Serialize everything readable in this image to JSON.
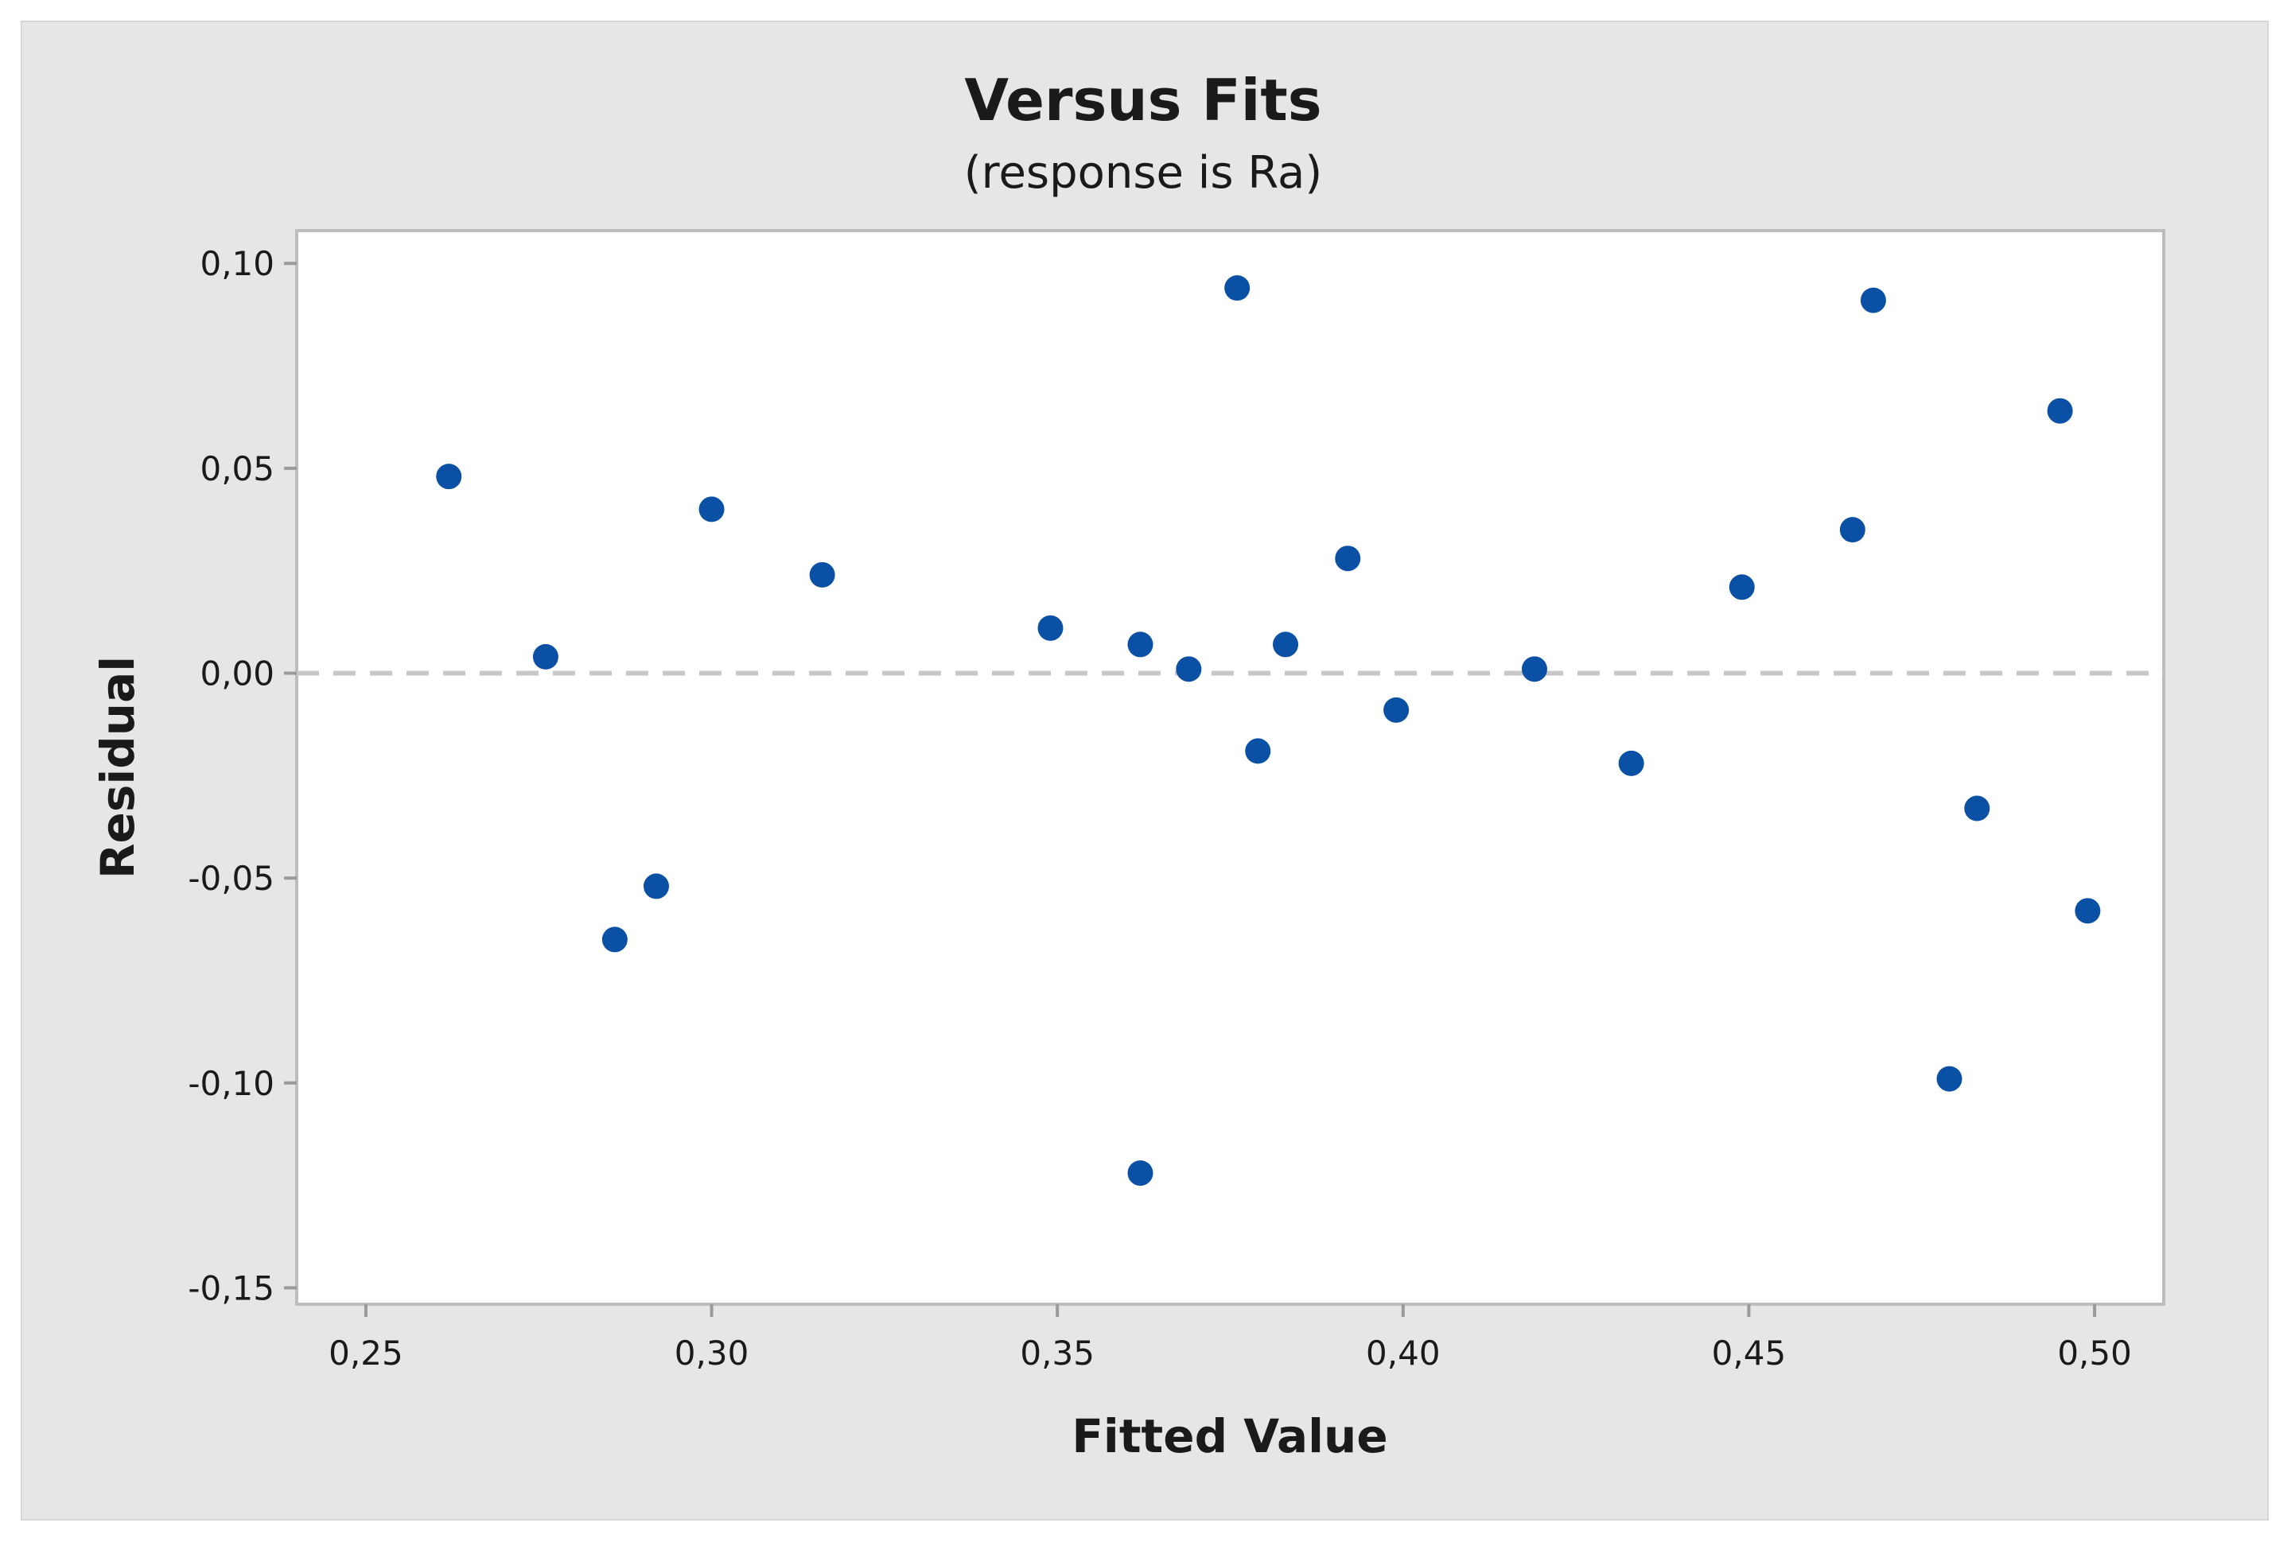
{
  "chart_data": {
    "type": "scatter",
    "title": "Versus Fits",
    "subtitle": "(response is Ra)",
    "xlabel": "Fitted Value",
    "ylabel": "Residual",
    "xlim": [
      0.24,
      0.51
    ],
    "ylim": [
      -0.154,
      0.108
    ],
    "x_ticks": [
      0.25,
      0.3,
      0.35,
      0.4,
      0.45,
      0.5
    ],
    "x_tick_labels": [
      "0,25",
      "0,30",
      "0,35",
      "0,40",
      "0,45",
      "0,50"
    ],
    "y_ticks": [
      0.1,
      0.05,
      0.0,
      -0.05,
      -0.1,
      -0.15
    ],
    "y_tick_labels": [
      "0,10",
      "0,05",
      "0,00",
      "-0,05",
      "-0,10",
      "-0,15"
    ],
    "reference_line": 0,
    "grid": false,
    "colors": {
      "frame_background": "#e6e6e6",
      "plot_background": "#ffffff",
      "point": "#0a50a4",
      "reference_line": "#c8c8c8",
      "axis": "#bdbdbd"
    },
    "points": [
      {
        "x": 0.262,
        "y": 0.048
      },
      {
        "x": 0.276,
        "y": 0.004
      },
      {
        "x": 0.286,
        "y": -0.065
      },
      {
        "x": 0.292,
        "y": -0.052
      },
      {
        "x": 0.3,
        "y": 0.04
      },
      {
        "x": 0.316,
        "y": 0.024
      },
      {
        "x": 0.349,
        "y": 0.011
      },
      {
        "x": 0.362,
        "y": 0.007
      },
      {
        "x": 0.362,
        "y": -0.122
      },
      {
        "x": 0.369,
        "y": 0.001
      },
      {
        "x": 0.376,
        "y": 0.094
      },
      {
        "x": 0.379,
        "y": -0.019
      },
      {
        "x": 0.383,
        "y": 0.007
      },
      {
        "x": 0.392,
        "y": 0.028
      },
      {
        "x": 0.399,
        "y": -0.009
      },
      {
        "x": 0.419,
        "y": 0.001
      },
      {
        "x": 0.433,
        "y": -0.022
      },
      {
        "x": 0.449,
        "y": 0.021
      },
      {
        "x": 0.465,
        "y": 0.035
      },
      {
        "x": 0.468,
        "y": 0.091
      },
      {
        "x": 0.479,
        "y": -0.099
      },
      {
        "x": 0.483,
        "y": -0.033
      },
      {
        "x": 0.495,
        "y": 0.064
      },
      {
        "x": 0.499,
        "y": -0.058
      }
    ]
  }
}
